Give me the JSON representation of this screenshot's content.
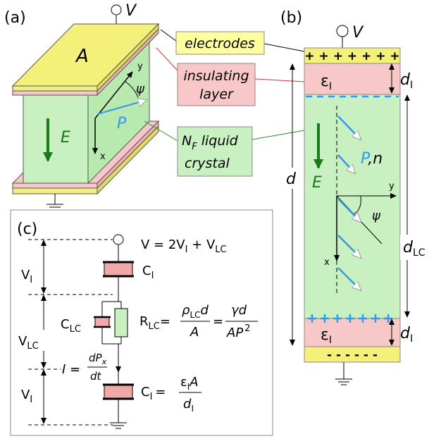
{
  "panel_a": {
    "label": "(a)",
    "voltage": "V",
    "area": "A",
    "field": "E",
    "polarization": "P",
    "axis_y": "y",
    "axis_x": "x",
    "angle": "ψ"
  },
  "callouts": {
    "electrodes": "electrodes",
    "insulating_1": "insulating",
    "insulating_2": "layer",
    "lc_main": "N",
    "lc_sub": "F",
    "lc_rest": " liquid",
    "lc_line2": "crystal"
  },
  "panel_b": {
    "label": "(b)",
    "voltage": "V",
    "plus": "+ + + + + + +",
    "minus": "- - - - - -",
    "eps_main": "ε",
    "eps_sub": "I",
    "eps2_main": "ε",
    "eps2_sub": "I",
    "dI_main": "d",
    "dI_sub": "I",
    "dI2_main": "d",
    "dI2_sub": "I",
    "d": "d",
    "field": "E",
    "pn_p": "P",
    "pn_n": ",n",
    "axis_y": "y",
    "axis_x": "x",
    "angle": "ψ",
    "dLC_main": "d",
    "dLC_sub": "LC"
  },
  "panel_c": {
    "label": "(c)",
    "v_formula": {
      "a": "V = 2V",
      "b": "I",
      "c": " + V",
      "d": "LC"
    },
    "ci_top": {
      "main": "C",
      "sub": "I"
    },
    "vi_top": {
      "main": "V",
      "sub": "I"
    },
    "vlc": {
      "main": "V",
      "sub": "LC"
    },
    "clc": {
      "main": "C",
      "sub": "LC"
    },
    "r_formula": {
      "r": "R",
      "r_sub": "LC",
      "eq": "=",
      "num_rho": "ρ",
      "num_sub": "LC",
      "num_d": "d",
      "den": "A",
      "eq2": "=",
      "num2": "γd",
      "den2": "AP",
      "den2_sup": "2"
    },
    "i_formula": {
      "lhs": "I =",
      "num": "dP",
      "num_sub": "x",
      "den": "dt"
    },
    "vi_bottom": {
      "main": "V",
      "sub": "I"
    },
    "ci_formula": {
      "main": "C",
      "sub": "I",
      "eq": "=",
      "num_eps": "ε",
      "num_sub": "I",
      "num_a": "A",
      "den": "d",
      "den_sub": "I"
    }
  }
}
